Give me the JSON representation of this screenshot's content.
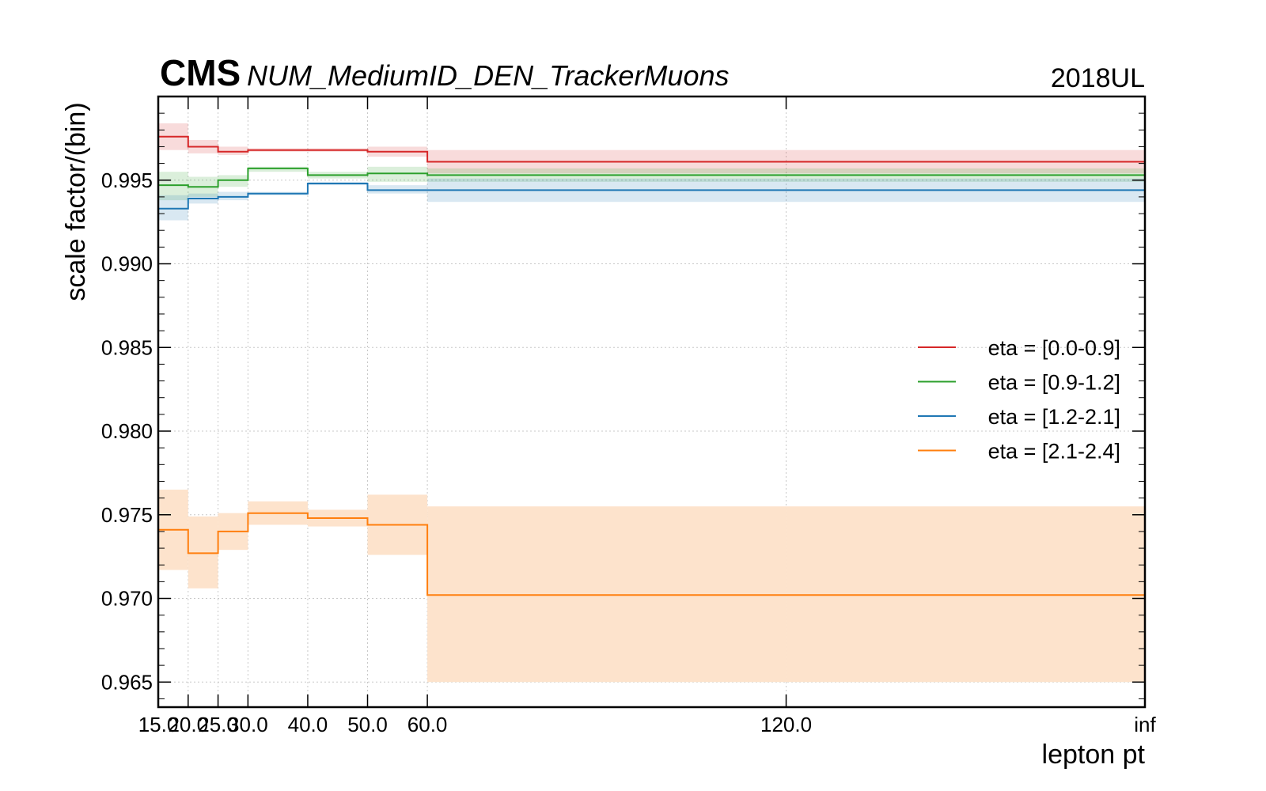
{
  "header": {
    "experiment": "CMS",
    "subtitle": "NUM_MediumID_DEN_TrackerMuons",
    "year": "2018UL"
  },
  "chart_data": {
    "type": "line",
    "step": "histogram",
    "xlabel": "lepton pt",
    "ylabel": "scale factor/(bin)",
    "x_edges": [
      15.0,
      20.0,
      25.0,
      30.0,
      40.0,
      50.0,
      60.0,
      120.0,
      "inf"
    ],
    "x_tick_labels": [
      "15.0",
      "20.0",
      "25.0",
      "30.0",
      "40.0",
      "50.0",
      "60.0",
      "120.0",
      "inf"
    ],
    "ylim": [
      0.9635,
      1.0
    ],
    "y_ticks": [
      0.965,
      0.97,
      0.975,
      0.98,
      0.985,
      0.99,
      0.995
    ],
    "y_tick_labels": [
      "0.965",
      "0.970",
      "0.975",
      "0.980",
      "0.985",
      "0.990",
      "0.995"
    ],
    "grid": true,
    "legend_position": "right",
    "series": [
      {
        "name": "eta = [0.0-0.9]",
        "color": "#d62728",
        "values": [
          0.9976,
          0.997,
          0.9967,
          0.9968,
          0.9968,
          0.9967,
          0.9961,
          0.9961
        ],
        "err_low": [
          0.9968,
          0.9966,
          0.9965,
          0.9967,
          0.9967,
          0.9964,
          0.9954,
          0.9954
        ],
        "err_high": [
          0.9984,
          0.9974,
          0.997,
          0.9969,
          0.9969,
          0.997,
          0.9968,
          0.9968
        ]
      },
      {
        "name": "eta = [0.9-1.2]",
        "color": "#2ca02c",
        "values": [
          0.9947,
          0.9946,
          0.995,
          0.9957,
          0.9953,
          0.9954,
          0.9953,
          0.9953
        ],
        "err_low": [
          0.9938,
          0.994,
          0.9946,
          0.9955,
          0.9951,
          0.9949,
          0.9949,
          0.9949
        ],
        "err_high": [
          0.9955,
          0.9952,
          0.9953,
          0.9958,
          0.9955,
          0.9958,
          0.9957,
          0.9957
        ]
      },
      {
        "name": "eta = [1.2-2.1]",
        "color": "#1f77b4",
        "values": [
          0.9933,
          0.9939,
          0.994,
          0.9942,
          0.9948,
          0.9944,
          0.9944,
          0.9944
        ],
        "err_low": [
          0.9926,
          0.9936,
          0.9938,
          0.9941,
          0.9947,
          0.9942,
          0.9937,
          0.9937
        ],
        "err_high": [
          0.9941,
          0.9942,
          0.9943,
          0.9943,
          0.9949,
          0.9947,
          0.9951,
          0.9951
        ]
      },
      {
        "name": "eta = [2.1-2.4]",
        "color": "#ff7f0e",
        "fill": "#fde3cc",
        "values": [
          0.9741,
          0.9727,
          0.974,
          0.9751,
          0.9748,
          0.9744,
          0.9702,
          0.9702
        ],
        "err_low": [
          0.9717,
          0.9706,
          0.9729,
          0.9744,
          0.9743,
          0.9726,
          0.965,
          0.965
        ],
        "err_high": [
          0.9765,
          0.9749,
          0.9751,
          0.9758,
          0.9753,
          0.9762,
          0.9755,
          0.9755
        ]
      }
    ]
  }
}
